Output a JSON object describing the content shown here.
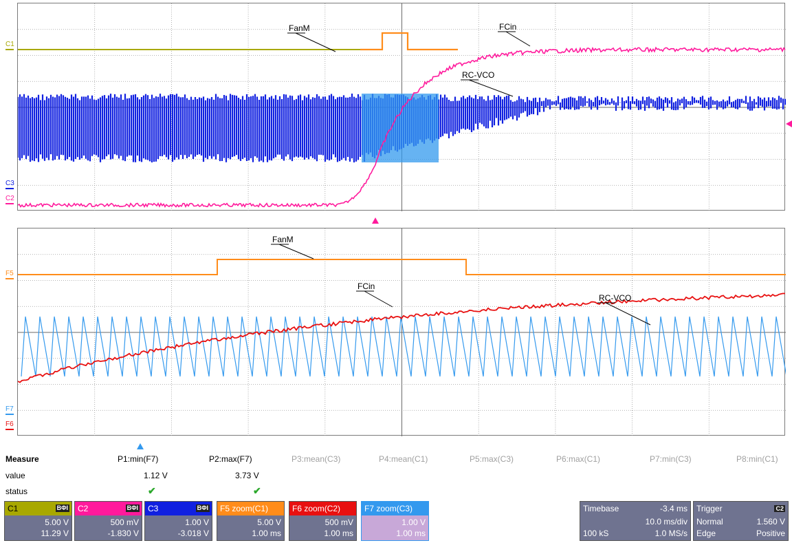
{
  "colors": {
    "c1": "#a8a800",
    "c2": "#ff1a9c",
    "c3": "#1020e0",
    "f5": "#ff8c1a",
    "f6": "#e81010",
    "f7": "#3399ee",
    "panel": "#6f7390"
  },
  "traces": {
    "top": {
      "labels": {
        "fanm": "FanM",
        "fcin": "FCin",
        "rcvco": "RC-VCO"
      },
      "channels": {
        "c1": "C1",
        "c2": "C2",
        "c3": "C3"
      }
    },
    "bottom": {
      "labels": {
        "fanm": "FanM",
        "fcin": "FCin",
        "rcvco": "RC-VCO"
      },
      "channels": {
        "f5": "F5",
        "f6": "F6",
        "f7": "F7"
      }
    }
  },
  "measure": {
    "title": "Measure",
    "row_value": "value",
    "row_status": "status",
    "params": [
      {
        "name": "P1:min(F7)",
        "value": "1.12 V",
        "status": "✔",
        "active": true
      },
      {
        "name": "P2:max(F7)",
        "value": "3.73 V",
        "status": "✔",
        "active": true
      },
      {
        "name": "P3:mean(C3)",
        "value": "",
        "status": "",
        "active": false
      },
      {
        "name": "P4:mean(C1)",
        "value": "",
        "status": "",
        "active": false
      },
      {
        "name": "P5:max(C3)",
        "value": "",
        "status": "",
        "active": false
      },
      {
        "name": "P6:max(C1)",
        "value": "",
        "status": "",
        "active": false
      },
      {
        "name": "P7:min(C3)",
        "value": "",
        "status": "",
        "active": false
      },
      {
        "name": "P8:min(C1)",
        "value": "",
        "status": "",
        "active": false
      }
    ]
  },
  "channel_boxes": [
    {
      "label": "C1",
      "badge": "BΦI",
      "scale": "5.00 V",
      "offset": "11.29 V",
      "color": "#a8a800"
    },
    {
      "label": "C2",
      "badge": "BΦI",
      "scale": "500 mV",
      "offset": "-1.830 V",
      "color": "#ff1a9c"
    },
    {
      "label": "C3",
      "badge": "BΦI",
      "scale": "1.00 V",
      "offset": "-3.018 V",
      "color": "#1020e0"
    },
    {
      "label": "F5",
      "title": "zoom(C1)",
      "scale": "5.00 V",
      "offset": "1.00 ms",
      "color": "#ff8c1a"
    },
    {
      "label": "F6",
      "title": "zoom(C2)",
      "scale": "500 mV",
      "offset": "1.00 ms",
      "color": "#e81010"
    },
    {
      "label": "F7",
      "title": "zoom(C3)",
      "scale": "1.00 V",
      "offset": "1.00 ms",
      "color": "#3399ee"
    }
  ],
  "timebase": {
    "title": "Timebase",
    "delay": "-3.4 ms",
    "per_div": "10.0 ms/div",
    "points": "100 kS",
    "rate": "1.0 MS/s"
  },
  "trigger": {
    "title": "Trigger",
    "source": "C2",
    "mode": "Normal",
    "level": "1.560 V",
    "type": "Edge",
    "slope": "Positive"
  }
}
